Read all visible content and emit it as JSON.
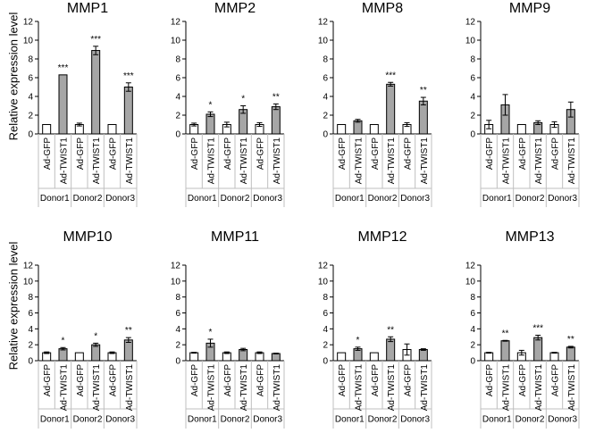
{
  "figure": {
    "ylabel": "Relative expression level",
    "groups": [
      "Donor1",
      "Donor2",
      "Donor3"
    ],
    "conditions": [
      "Ad-GFP",
      "Ad-TWIST1"
    ],
    "colors": {
      "control": "#ffffff",
      "treatment": "#a6a6a6",
      "axis": "#000000",
      "gridline": "#bfbfbf"
    }
  },
  "chart_data": [
    {
      "type": "bar",
      "title": "MMP1",
      "ylim": [
        0,
        12
      ],
      "yticks": [
        0,
        2,
        4,
        6,
        8,
        10,
        12
      ],
      "categories": [
        "Ad-GFP",
        "Ad-TWIST1",
        "Ad-GFP",
        "Ad-TWIST1",
        "Ad-GFP",
        "Ad-TWIST1"
      ],
      "groups": [
        "Donor1",
        "Donor2",
        "Donor3"
      ],
      "values": [
        1,
        6.3,
        1,
        8.9,
        1,
        5.0
      ],
      "errors": [
        0,
        0,
        0.15,
        0.45,
        0,
        0.45
      ],
      "significance": [
        "",
        "***",
        "",
        "***",
        "",
        "***"
      ]
    },
    {
      "type": "bar",
      "title": "MMP2",
      "ylim": [
        0,
        12
      ],
      "yticks": [
        0,
        2,
        4,
        6,
        8,
        10,
        12
      ],
      "categories": [
        "Ad-GFP",
        "Ad-TWIST1",
        "Ad-GFP",
        "Ad-TWIST1",
        "Ad-GFP",
        "Ad-TWIST1"
      ],
      "groups": [
        "Donor1",
        "Donor2",
        "Donor3"
      ],
      "values": [
        1,
        2.1,
        1,
        2.6,
        1,
        2.9
      ],
      "errors": [
        0.15,
        0.25,
        0.25,
        0.4,
        0.2,
        0.3
      ],
      "significance": [
        "",
        "*",
        "",
        "*",
        "",
        "**"
      ]
    },
    {
      "type": "bar",
      "title": "MMP8",
      "ylim": [
        0,
        12
      ],
      "yticks": [
        0,
        2,
        4,
        6,
        8,
        10,
        12
      ],
      "categories": [
        "Ad-GFP",
        "Ad-TWIST1",
        "Ad-GFP",
        "Ad-TWIST1",
        "Ad-GFP",
        "Ad-TWIST1"
      ],
      "groups": [
        "Donor1",
        "Donor2",
        "Donor3"
      ],
      "values": [
        1,
        1.4,
        1,
        5.3,
        1,
        3.5
      ],
      "errors": [
        0,
        0.15,
        0,
        0.2,
        0.2,
        0.4
      ],
      "significance": [
        "",
        "",
        "",
        "***",
        "",
        "**"
      ]
    },
    {
      "type": "bar",
      "title": "MMP9",
      "ylim": [
        0,
        12
      ],
      "yticks": [
        0,
        2,
        4,
        6,
        8,
        10,
        12
      ],
      "categories": [
        "Ad-GFP",
        "Ad-TWIST1",
        "Ad-GFP",
        "Ad-TWIST1",
        "Ad-GFP",
        "Ad-TWIST1"
      ],
      "groups": [
        "Donor1",
        "Donor2",
        "Donor3"
      ],
      "values": [
        1,
        3.1,
        1,
        1.2,
        1,
        2.6
      ],
      "errors": [
        0.45,
        1.1,
        0,
        0.2,
        0.3,
        0.8
      ],
      "significance": [
        "",
        "",
        "",
        "",
        "",
        ""
      ]
    },
    {
      "type": "bar",
      "title": "MMP10",
      "ylim": [
        0,
        12
      ],
      "yticks": [
        0,
        2,
        4,
        6,
        8,
        10,
        12
      ],
      "categories": [
        "Ad-GFP",
        "Ad-TWIST1",
        "Ad-GFP",
        "Ad-TWIST1",
        "Ad-GFP",
        "Ad-TWIST1"
      ],
      "groups": [
        "Donor1",
        "Donor2",
        "Donor3"
      ],
      "values": [
        1,
        1.5,
        1,
        2.0,
        1,
        2.6
      ],
      "errors": [
        0.1,
        0.15,
        0,
        0.2,
        0.1,
        0.3
      ],
      "significance": [
        "",
        "*",
        "",
        "*",
        "",
        "**"
      ]
    },
    {
      "type": "bar",
      "title": "MMP11",
      "ylim": [
        0,
        12
      ],
      "yticks": [
        0,
        2,
        4,
        6,
        8,
        10,
        12
      ],
      "categories": [
        "Ad-GFP",
        "Ad-TWIST1",
        "Ad-GFP",
        "Ad-TWIST1",
        "Ad-GFP",
        "Ad-TWIST1"
      ],
      "groups": [
        "Donor1",
        "Donor2",
        "Donor3"
      ],
      "values": [
        1,
        2.2,
        1,
        1.4,
        1,
        0.9
      ],
      "errors": [
        0.05,
        0.5,
        0.1,
        0.15,
        0.1,
        0.05
      ],
      "significance": [
        "",
        "*",
        "",
        "",
        "",
        ""
      ]
    },
    {
      "type": "bar",
      "title": "MMP12",
      "ylim": [
        0,
        12
      ],
      "yticks": [
        0,
        2,
        4,
        6,
        8,
        10,
        12
      ],
      "categories": [
        "Ad-GFP",
        "Ad-TWIST1",
        "Ad-GFP",
        "Ad-TWIST1",
        "Ad-GFP",
        "Ad-TWIST1"
      ],
      "groups": [
        "Donor1",
        "Donor2",
        "Donor3"
      ],
      "values": [
        1,
        1.5,
        1,
        2.7,
        1.4,
        1.4
      ],
      "errors": [
        0,
        0.2,
        0,
        0.3,
        0.7,
        0.1
      ],
      "significance": [
        "",
        "*",
        "",
        "**",
        "",
        ""
      ]
    },
    {
      "type": "bar",
      "title": "MMP13",
      "ylim": [
        0,
        12
      ],
      "yticks": [
        0,
        2,
        4,
        6,
        8,
        10,
        12
      ],
      "categories": [
        "Ad-GFP",
        "Ad-TWIST1",
        "Ad-GFP",
        "Ad-TWIST1",
        "Ad-GFP",
        "Ad-TWIST1"
      ],
      "groups": [
        "Donor1",
        "Donor2",
        "Donor3"
      ],
      "values": [
        1,
        2.5,
        1,
        2.9,
        1,
        1.7
      ],
      "errors": [
        0.05,
        0.05,
        0.3,
        0.3,
        0.05,
        0.1
      ],
      "significance": [
        "",
        "**",
        "",
        "***",
        "",
        "**"
      ]
    }
  ]
}
